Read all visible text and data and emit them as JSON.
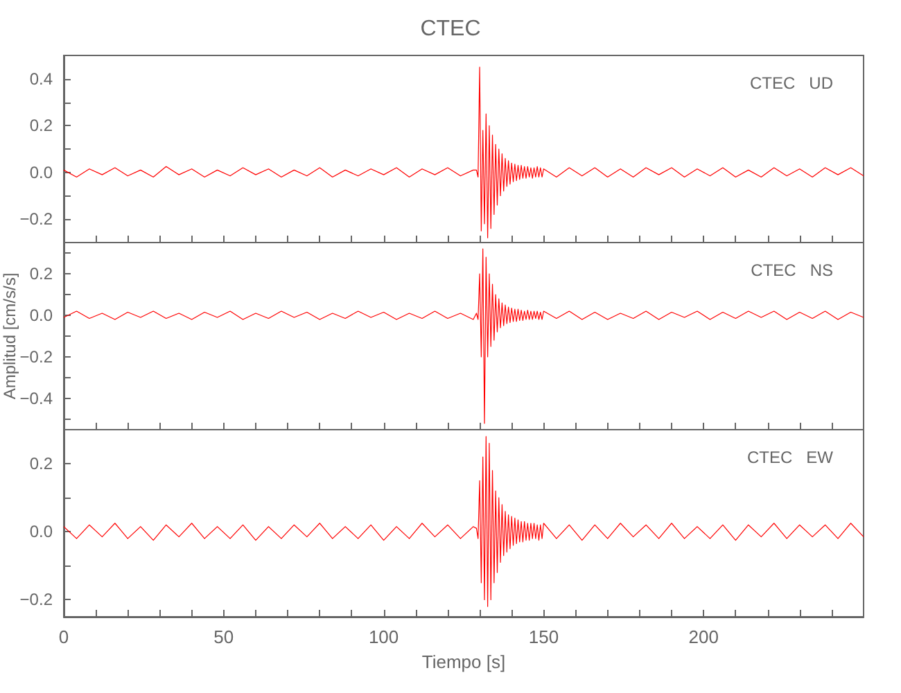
{
  "chart_data": [
    {
      "type": "line",
      "title": "CTEC",
      "annotations": [
        "CTEC   UD"
      ],
      "tick_labels": "y",
      "grid": false,
      "x": [
        0,
        4,
        8,
        12,
        16,
        20,
        24,
        28,
        32,
        36,
        40,
        44,
        48,
        52,
        56,
        60,
        64,
        68,
        72,
        76,
        80,
        84,
        88,
        92,
        96,
        100,
        104,
        108,
        112,
        116,
        120,
        124,
        128,
        129,
        129.5,
        130,
        130.5,
        131,
        131.5,
        132,
        132.5,
        133,
        133.5,
        134,
        134.5,
        135,
        135.5,
        136,
        136.5,
        137,
        137.5,
        138,
        138.5,
        139,
        139.5,
        140,
        140.5,
        141,
        141.5,
        142,
        142.5,
        143,
        143.5,
        144,
        144.5,
        145,
        145.5,
        146,
        146.5,
        147,
        147.5,
        148,
        148.5,
        149,
        149.5,
        150,
        154,
        158,
        162,
        166,
        170,
        174,
        178,
        182,
        186,
        190,
        194,
        198,
        202,
        206,
        210,
        214,
        218,
        222,
        226,
        230,
        234,
        238,
        242,
        246,
        250
      ],
      "xlim": [
        0,
        250
      ],
      "xticks": [
        0,
        {
          "value": 10,
          "label": null
        },
        {
          "value": 20,
          "label": null
        },
        {
          "value": 30,
          "label": null
        },
        {
          "value": 40,
          "label": null
        },
        50,
        {
          "value": 60,
          "label": null
        },
        {
          "value": 70,
          "label": null
        },
        {
          "value": 80,
          "label": null
        },
        {
          "value": 90,
          "label": null
        },
        100,
        {
          "value": 110,
          "label": null
        },
        {
          "value": 120,
          "label": null
        },
        {
          "value": 130,
          "label": null
        },
        {
          "value": 140,
          "label": null
        },
        150,
        {
          "value": 160,
          "label": null
        },
        {
          "value": 170,
          "label": null
        },
        {
          "value": 180,
          "label": null
        },
        {
          "value": 190,
          "label": null
        },
        200,
        {
          "value": 210,
          "label": null
        },
        {
          "value": 220,
          "label": null
        },
        {
          "value": 230,
          "label": null
        },
        {
          "value": 240,
          "label": null
        }
      ],
      "ylim": [
        -0.3,
        0.5
      ],
      "yticks": [
        {
          "value": -0.2,
          "label": "−0.2"
        },
        {
          "value": -0.1,
          "label": null
        },
        {
          "value": 0,
          "label": "0.0"
        },
        {
          "value": 0.1,
          "label": null
        },
        {
          "value": 0.2,
          "label": "0.2"
        },
        {
          "value": 0.3,
          "label": null
        },
        {
          "value": 0.4,
          "label": "0.4"
        }
      ],
      "series": [
        {
          "color": "#ff0000",
          "values": [
            0.01,
            -0.02,
            0.015,
            -0.01,
            0.02,
            -0.015,
            0.01,
            -0.02,
            0.025,
            -0.01,
            0.015,
            -0.02,
            0.01,
            -0.015,
            0.02,
            -0.01,
            0.015,
            -0.02,
            0.01,
            -0.015,
            0.02,
            -0.02,
            0.01,
            -0.015,
            0.015,
            -0.01,
            0.02,
            -0.02,
            0.015,
            -0.01,
            0.02,
            -0.015,
            0.01,
            0.01,
            -0.02,
            0.45,
            -0.25,
            0.18,
            -0.22,
            0.25,
            -0.28,
            0.2,
            -0.24,
            0.16,
            -0.18,
            0.12,
            -0.14,
            0.1,
            -0.1,
            0.08,
            -0.08,
            0.06,
            -0.06,
            0.05,
            -0.05,
            0.04,
            -0.04,
            0.035,
            -0.035,
            0.03,
            -0.03,
            0.03,
            -0.025,
            0.025,
            -0.025,
            0.025,
            -0.02,
            0.02,
            -0.025,
            0.02,
            -0.02,
            0.025,
            -0.02,
            0.02,
            -0.02,
            0.015,
            -0.02,
            0.02,
            -0.015,
            0.02,
            -0.02,
            0.015,
            -0.02,
            0.02,
            -0.01,
            0.02,
            -0.02,
            0.015,
            -0.015,
            0.02,
            -0.02,
            0.01,
            -0.02,
            0.02,
            -0.015,
            0.015,
            -0.02,
            0.02,
            -0.01,
            0.02,
            -0.015
          ]
        }
      ]
    },
    {
      "type": "line",
      "ylabel": "Amplitud [cm/s/s]",
      "annotations": [
        "CTEC   NS"
      ],
      "tick_labels": "y",
      "grid": false,
      "x": [
        0,
        4,
        8,
        12,
        16,
        20,
        24,
        28,
        32,
        36,
        40,
        44,
        48,
        52,
        56,
        60,
        64,
        68,
        72,
        76,
        80,
        84,
        88,
        92,
        96,
        100,
        104,
        108,
        112,
        116,
        120,
        124,
        128,
        129,
        129.5,
        130,
        130.5,
        131,
        131.5,
        132,
        132.5,
        133,
        133.5,
        134,
        134.5,
        135,
        135.5,
        136,
        136.5,
        137,
        137.5,
        138,
        138.5,
        139,
        139.5,
        140,
        140.5,
        141,
        141.5,
        142,
        142.5,
        143,
        143.5,
        144,
        144.5,
        145,
        145.5,
        146,
        146.5,
        147,
        147.5,
        148,
        148.5,
        149,
        149.5,
        150,
        154,
        158,
        162,
        166,
        170,
        174,
        178,
        182,
        186,
        190,
        194,
        198,
        202,
        206,
        210,
        214,
        218,
        222,
        226,
        230,
        234,
        238,
        242,
        246,
        250
      ],
      "xlim": [
        0,
        250
      ],
      "xticks": [
        0,
        {
          "value": 10,
          "label": null
        },
        {
          "value": 20,
          "label": null
        },
        {
          "value": 30,
          "label": null
        },
        {
          "value": 40,
          "label": null
        },
        50,
        {
          "value": 60,
          "label": null
        },
        {
          "value": 70,
          "label": null
        },
        {
          "value": 80,
          "label": null
        },
        {
          "value": 90,
          "label": null
        },
        100,
        {
          "value": 110,
          "label": null
        },
        {
          "value": 120,
          "label": null
        },
        {
          "value": 130,
          "label": null
        },
        {
          "value": 140,
          "label": null
        },
        150,
        {
          "value": 160,
          "label": null
        },
        {
          "value": 170,
          "label": null
        },
        {
          "value": 180,
          "label": null
        },
        {
          "value": 190,
          "label": null
        },
        200,
        {
          "value": 210,
          "label": null
        },
        {
          "value": 220,
          "label": null
        },
        {
          "value": 230,
          "label": null
        },
        {
          "value": 240,
          "label": null
        }
      ],
      "ylim": [
        -0.55,
        0.35
      ],
      "yticks": [
        {
          "value": -0.5,
          "label": null
        },
        {
          "value": -0.4,
          "label": "−0.4"
        },
        {
          "value": -0.3,
          "label": null
        },
        {
          "value": -0.2,
          "label": "−0.2"
        },
        {
          "value": -0.1,
          "label": null
        },
        {
          "value": 0,
          "label": "0.0"
        },
        {
          "value": 0.1,
          "label": null
        },
        {
          "value": 0.2,
          "label": "0.2"
        },
        {
          "value": 0.3,
          "label": null
        }
      ],
      "series": [
        {
          "color": "#ff0000",
          "values": [
            -0.01,
            0.02,
            -0.015,
            0.01,
            -0.02,
            0.015,
            -0.01,
            0.02,
            -0.015,
            0.01,
            -0.02,
            0.015,
            -0.01,
            0.02,
            -0.02,
            0.01,
            -0.015,
            0.02,
            -0.01,
            0.015,
            -0.02,
            0.01,
            -0.015,
            0.02,
            -0.01,
            0.015,
            -0.02,
            0.01,
            -0.015,
            0.02,
            -0.015,
            0.01,
            -0.02,
            0.01,
            -0.02,
            0.2,
            -0.2,
            0.32,
            -0.52,
            0.28,
            -0.2,
            0.2,
            -0.15,
            0.15,
            -0.12,
            0.1,
            -0.08,
            0.08,
            -0.06,
            0.06,
            -0.05,
            0.05,
            -0.04,
            0.04,
            -0.035,
            0.035,
            -0.03,
            0.03,
            -0.03,
            0.03,
            -0.025,
            0.025,
            -0.025,
            0.02,
            -0.02,
            0.025,
            -0.02,
            0.02,
            -0.02,
            0.02,
            -0.015,
            0.02,
            -0.02,
            0.015,
            -0.02,
            0.02,
            -0.015,
            0.02,
            -0.02,
            0.015,
            -0.02,
            0.01,
            -0.015,
            0.02,
            -0.02,
            0.015,
            -0.01,
            0.02,
            -0.02,
            0.015,
            -0.015,
            0.02,
            -0.01,
            0.02,
            -0.02,
            0.015,
            -0.015,
            0.02,
            -0.02,
            0.015,
            -0.01
          ]
        }
      ]
    },
    {
      "type": "line",
      "xlabel": "Tiempo [s]",
      "annotations": [
        "CTEC   EW"
      ],
      "grid": false,
      "x": [
        0,
        4,
        8,
        12,
        16,
        20,
        24,
        28,
        32,
        36,
        40,
        44,
        48,
        52,
        56,
        60,
        64,
        68,
        72,
        76,
        80,
        84,
        88,
        92,
        96,
        100,
        104,
        108,
        112,
        116,
        120,
        124,
        128,
        129,
        129.5,
        130,
        130.5,
        131,
        131.5,
        132,
        132.5,
        133,
        133.5,
        134,
        134.5,
        135,
        135.5,
        136,
        136.5,
        137,
        137.5,
        138,
        138.5,
        139,
        139.5,
        140,
        140.5,
        141,
        141.5,
        142,
        142.5,
        143,
        143.5,
        144,
        144.5,
        145,
        145.5,
        146,
        146.5,
        147,
        147.5,
        148,
        148.5,
        149,
        149.5,
        150,
        154,
        158,
        162,
        166,
        170,
        174,
        178,
        182,
        186,
        190,
        194,
        198,
        202,
        206,
        210,
        214,
        218,
        222,
        226,
        230,
        234,
        238,
        242,
        246,
        250
      ],
      "xlim": [
        0,
        250
      ],
      "xticks": [
        0,
        {
          "value": 10,
          "label": null
        },
        {
          "value": 20,
          "label": null
        },
        {
          "value": 30,
          "label": null
        },
        {
          "value": 40,
          "label": null
        },
        50,
        {
          "value": 60,
          "label": null
        },
        {
          "value": 70,
          "label": null
        },
        {
          "value": 80,
          "label": null
        },
        {
          "value": 90,
          "label": null
        },
        100,
        {
          "value": 110,
          "label": null
        },
        {
          "value": 120,
          "label": null
        },
        {
          "value": 130,
          "label": null
        },
        {
          "value": 140,
          "label": null
        },
        150,
        {
          "value": 160,
          "label": null
        },
        {
          "value": 170,
          "label": null
        },
        {
          "value": 180,
          "label": null
        },
        {
          "value": 190,
          "label": null
        },
        200,
        {
          "value": 210,
          "label": null
        },
        {
          "value": 220,
          "label": null
        },
        {
          "value": 230,
          "label": null
        },
        {
          "value": 240,
          "label": null
        }
      ],
      "ylim": [
        -0.25,
        0.3
      ],
      "yticks": [
        {
          "value": -0.2,
          "label": "−0.2"
        },
        {
          "value": -0.1,
          "label": null
        },
        {
          "value": 0,
          "label": "0.0"
        },
        {
          "value": 0.1,
          "label": null
        },
        {
          "value": 0.2,
          "label": "0.2"
        }
      ],
      "series": [
        {
          "color": "#ff0000",
          "values": [
            0.015,
            -0.02,
            0.02,
            -0.015,
            0.025,
            -0.02,
            0.015,
            -0.025,
            0.02,
            -0.015,
            0.025,
            -0.02,
            0.015,
            -0.02,
            0.02,
            -0.025,
            0.015,
            -0.02,
            0.02,
            -0.015,
            0.025,
            -0.02,
            0.015,
            -0.02,
            0.02,
            -0.025,
            0.015,
            -0.02,
            0.025,
            -0.015,
            0.02,
            -0.02,
            0.015,
            0.01,
            -0.02,
            0.15,
            -0.15,
            0.22,
            -0.2,
            0.28,
            -0.22,
            0.26,
            -0.2,
            0.18,
            -0.15,
            0.12,
            -0.12,
            0.1,
            -0.09,
            0.08,
            -0.07,
            0.06,
            -0.06,
            0.05,
            -0.05,
            0.045,
            -0.04,
            0.04,
            -0.035,
            0.035,
            -0.03,
            0.03,
            -0.03,
            0.03,
            -0.025,
            0.025,
            -0.025,
            0.025,
            -0.02,
            0.025,
            -0.02,
            0.02,
            -0.025,
            0.02,
            -0.02,
            0.025,
            -0.02,
            0.02,
            -0.025,
            0.02,
            -0.02,
            0.025,
            -0.015,
            0.02,
            -0.02,
            0.025,
            -0.02,
            0.015,
            -0.02,
            0.02,
            -0.025,
            0.02,
            -0.015,
            0.025,
            -0.02,
            0.02,
            -0.015,
            0.02,
            -0.02,
            0.025,
            -0.015
          ]
        }
      ]
    }
  ]
}
